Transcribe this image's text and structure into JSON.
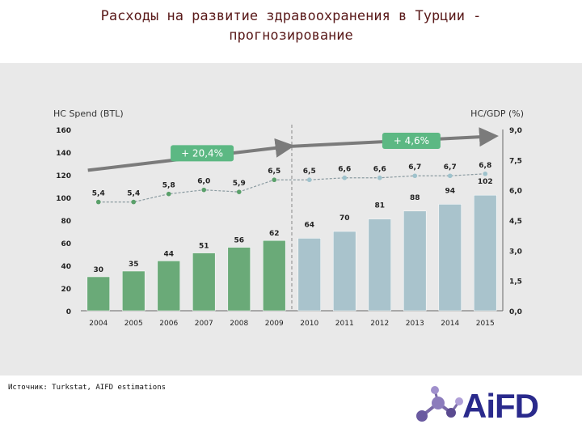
{
  "slide": {
    "title_line1": "Расходы на развитие здравоохранения в Турции -",
    "title_line2": "прогнозирование",
    "source": "Источник: Turkstat, AIFD estimations",
    "logo_text": "AiFD"
  },
  "colors": {
    "bar_actual": "#6aaa78",
    "bar_forecast": "#a9c3cc",
    "line": "#8a9aa0",
    "marker_actual": "#5aa06a",
    "marker_forecast": "#9ec2cc",
    "trend_arrow": "#7b7b7b",
    "callout_fill": "#5cb883",
    "divider": "#999999"
  },
  "chart_data": {
    "type": "bar",
    "categories": [
      "2004",
      "2005",
      "2006",
      "2007",
      "2008",
      "2009",
      "2010",
      "2011",
      "2012",
      "2013",
      "2014",
      "2015"
    ],
    "series": [
      {
        "axis": "left",
        "type": "bar",
        "values": [
          30,
          35,
          44,
          51,
          56,
          62,
          64,
          70,
          81,
          88,
          94,
          102
        ],
        "labels": [
          "30",
          "35",
          "44",
          "51",
          "56",
          "62",
          "64",
          "70",
          "81",
          "88",
          "94",
          "102"
        ]
      },
      {
        "axis": "right",
        "type": "line",
        "values": [
          5.4,
          5.4,
          5.8,
          6.0,
          5.9,
          6.5,
          6.5,
          6.6,
          6.6,
          6.7,
          6.7,
          6.8
        ],
        "labels": [
          "5,4",
          "5,4",
          "5,8",
          "6,0",
          "5,9",
          "6,5",
          "6,5",
          "6,6",
          "6,6",
          "6,7",
          "6,7",
          "6,8"
        ]
      }
    ],
    "forecast_start_index": 6,
    "y_left": {
      "label": "HC Spend (BTL)",
      "ylim": [
        0,
        160
      ],
      "ticks": [
        0,
        20,
        40,
        60,
        80,
        100,
        120,
        140,
        160
      ],
      "tick_labels": [
        "0",
        "20",
        "40",
        "60",
        "80",
        "100",
        "120",
        "140",
        "160"
      ]
    },
    "y_right": {
      "label": "HC/GDP (%)",
      "ylim": [
        0,
        9.0
      ],
      "ticks": [
        0,
        1.5,
        3.0,
        4.5,
        6.0,
        7.5,
        9.0
      ],
      "tick_labels": [
        "0,0",
        "1,5",
        "3,0",
        "4,5",
        "6,0",
        "7,5",
        "9,0"
      ]
    },
    "annotations": [
      {
        "text": "+ 20,4%",
        "from_index": 0,
        "to_index": 5
      },
      {
        "text": "+ 4,6%",
        "from_index": 5,
        "to_index": 11
      }
    ],
    "grid": false
  }
}
